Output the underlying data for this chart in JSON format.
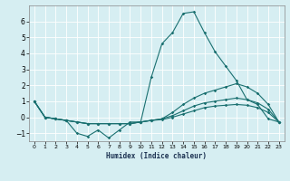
{
  "xlabel": "Humidex (Indice chaleur)",
  "background_color": "#d6eef2",
  "grid_color": "#ffffff",
  "line_color": "#1a7070",
  "xlim": [
    -0.5,
    23.5
  ],
  "ylim": [
    -1.5,
    7.0
  ],
  "yticks": [
    -1,
    0,
    1,
    2,
    3,
    4,
    5,
    6
  ],
  "xticks": [
    0,
    1,
    2,
    3,
    4,
    5,
    6,
    7,
    8,
    9,
    10,
    11,
    12,
    13,
    14,
    15,
    16,
    17,
    18,
    19,
    20,
    21,
    22,
    23
  ],
  "series": [
    [
      1.0,
      0.0,
      -0.1,
      -0.2,
      -1.0,
      -1.2,
      -0.8,
      -1.3,
      -0.8,
      -0.3,
      -0.3,
      2.5,
      4.6,
      5.3,
      6.5,
      6.6,
      5.3,
      4.1,
      3.2,
      2.3,
      1.1,
      0.8,
      -0.1,
      -0.3
    ],
    [
      1.0,
      0.0,
      -0.1,
      -0.2,
      -0.3,
      -0.4,
      -0.4,
      -0.4,
      -0.4,
      -0.4,
      -0.3,
      -0.2,
      -0.1,
      0.3,
      0.8,
      1.2,
      1.5,
      1.7,
      1.9,
      2.1,
      1.9,
      1.5,
      0.8,
      -0.3
    ],
    [
      1.0,
      0.0,
      -0.1,
      -0.2,
      -0.3,
      -0.4,
      -0.4,
      -0.4,
      -0.4,
      -0.4,
      -0.3,
      -0.2,
      -0.1,
      0.1,
      0.4,
      0.7,
      0.9,
      1.0,
      1.1,
      1.2,
      1.1,
      0.9,
      0.5,
      -0.3
    ],
    [
      1.0,
      0.0,
      -0.1,
      -0.2,
      -0.3,
      -0.4,
      -0.4,
      -0.4,
      -0.4,
      -0.4,
      -0.3,
      -0.2,
      -0.15,
      0.0,
      0.2,
      0.4,
      0.6,
      0.7,
      0.75,
      0.8,
      0.75,
      0.6,
      0.3,
      -0.3
    ]
  ]
}
